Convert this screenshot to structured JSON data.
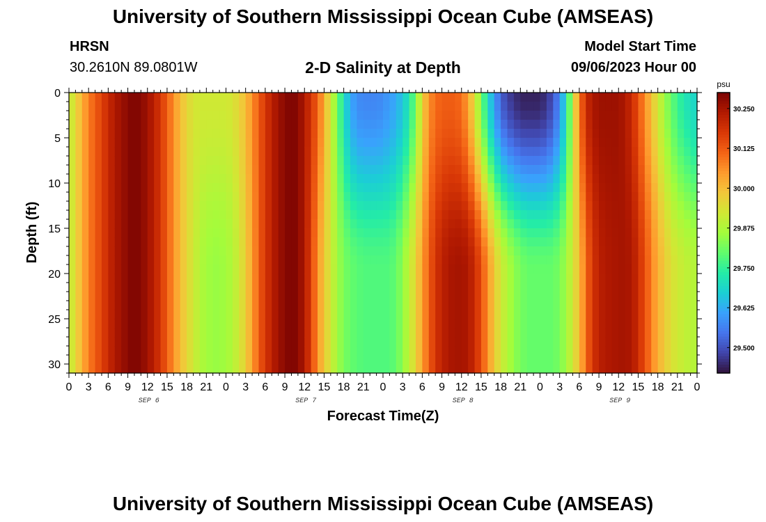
{
  "header": {
    "title": "University of Southern Mississippi Ocean Cube (AMSEAS)",
    "station": "HRSN",
    "coordinates": "30.2610N  89.0801W",
    "subtitle": "2-D Salinity at Depth",
    "start_label": "Model Start Time",
    "start_value": "09/06/2023 Hour 00"
  },
  "footer": {
    "title": "University of Southern Mississippi Ocean Cube (AMSEAS)"
  },
  "colors": {
    "colormap": [
      "#30123b",
      "#4145ab",
      "#4675ed",
      "#39a2fc",
      "#1bcfd4",
      "#24eca6",
      "#61fc6c",
      "#a4fc3b",
      "#d1e834",
      "#f3c63a",
      "#fe9b2d",
      "#f36315",
      "#d93806",
      "#b11901",
      "#7a0402"
    ]
  },
  "chart_data": {
    "type": "heatmap",
    "title": "2-D Salinity at Depth",
    "xlabel": "Forecast Time(Z)",
    "ylabel": "Depth (ft)",
    "xlim": [
      0,
      96
    ],
    "ylim": [
      0,
      31
    ],
    "x_ticks": [
      0,
      3,
      6,
      9,
      12,
      15,
      18,
      21,
      24,
      27,
      30,
      33,
      36,
      39,
      42,
      45,
      48,
      51,
      54,
      57,
      60,
      63,
      66,
      69,
      72,
      75,
      78,
      81,
      84,
      87,
      90,
      93,
      96
    ],
    "x_tick_labels": [
      "0",
      "3",
      "6",
      "9",
      "12",
      "15",
      "18",
      "21",
      "0",
      "3",
      "6",
      "9",
      "12",
      "15",
      "18",
      "21",
      "0",
      "3",
      "6",
      "9",
      "12",
      "15",
      "18",
      "21",
      "0",
      "3",
      "6",
      "9",
      "12",
      "15",
      "18",
      "21",
      "0"
    ],
    "y_ticks": [
      0,
      5,
      10,
      15,
      20,
      25,
      30
    ],
    "y_tick_labels": [
      "0",
      "5",
      "10",
      "15",
      "20",
      "25",
      "30"
    ],
    "date_labels": [
      {
        "x": 12,
        "label": "SEP 6"
      },
      {
        "x": 36,
        "label": "SEP 7"
      },
      {
        "x": 60,
        "label": "SEP 8"
      },
      {
        "x": 84,
        "label": "SEP 9"
      }
    ],
    "colorbar": {
      "units": "psu",
      "range": [
        29.42,
        30.3
      ],
      "ticks": [
        29.5,
        29.625,
        29.75,
        29.875,
        30.0,
        30.125,
        30.25
      ],
      "tick_labels": [
        "29.500",
        "29.625",
        "29.750",
        "29.875",
        "30.000",
        "30.125",
        "30.250"
      ]
    },
    "surface_profile": {
      "hours": [
        0,
        1,
        2,
        3,
        4,
        5,
        6,
        7,
        8,
        9,
        10,
        11,
        12,
        13,
        14,
        15,
        16,
        17,
        18,
        19,
        20,
        21,
        22,
        23,
        24,
        25,
        26,
        27,
        28,
        29,
        30,
        31,
        32,
        33,
        34,
        35,
        36,
        37,
        38,
        39,
        40,
        41,
        42,
        43,
        44,
        45,
        46,
        47,
        48,
        49,
        50,
        51,
        52,
        53,
        54,
        55,
        56,
        57,
        58,
        59,
        60,
        61,
        62,
        63,
        64,
        65,
        66,
        67,
        68,
        69,
        70,
        71,
        72,
        73,
        74,
        75,
        76,
        77,
        78,
        79,
        80,
        81,
        82,
        83,
        84,
        85,
        86,
        87,
        88,
        89,
        90,
        91,
        92,
        93,
        94,
        95,
        96
      ],
      "values": [
        29.9,
        29.95,
        30.02,
        30.08,
        30.12,
        30.16,
        30.2,
        30.24,
        30.26,
        30.28,
        30.3,
        30.28,
        30.26,
        30.22,
        30.18,
        30.12,
        30.06,
        30.0,
        29.96,
        29.93,
        29.92,
        29.92,
        29.92,
        29.92,
        29.92,
        29.93,
        29.96,
        30.0,
        30.06,
        30.12,
        30.18,
        30.22,
        30.26,
        30.28,
        30.3,
        30.28,
        30.24,
        30.18,
        30.12,
        30.02,
        29.92,
        29.82,
        29.7,
        29.62,
        29.58,
        29.57,
        29.57,
        29.57,
        29.58,
        29.6,
        29.62,
        29.66,
        29.72,
        29.82,
        29.96,
        30.06,
        30.1,
        30.12,
        30.12,
        30.12,
        30.1,
        30.04,
        29.94,
        29.82,
        29.7,
        29.6,
        29.52,
        29.48,
        29.46,
        29.44,
        29.44,
        29.44,
        29.44,
        29.46,
        29.5,
        29.58,
        29.7,
        29.9,
        30.08,
        30.2,
        30.24,
        30.26,
        30.26,
        30.26,
        30.26,
        30.24,
        30.2,
        30.14,
        30.06,
        30.0,
        29.92,
        29.86,
        29.8,
        29.76,
        29.72,
        29.7,
        29.68
      ]
    },
    "bottom_profile": {
      "hours": [
        0,
        1,
        2,
        3,
        4,
        5,
        6,
        7,
        8,
        9,
        10,
        11,
        12,
        13,
        14,
        15,
        16,
        17,
        18,
        19,
        20,
        21,
        22,
        23,
        24,
        25,
        26,
        27,
        28,
        29,
        30,
        31,
        32,
        33,
        34,
        35,
        36,
        37,
        38,
        39,
        40,
        41,
        42,
        43,
        44,
        45,
        46,
        47,
        48,
        49,
        50,
        51,
        52,
        53,
        54,
        55,
        56,
        57,
        58,
        59,
        60,
        61,
        62,
        63,
        64,
        65,
        66,
        67,
        68,
        69,
        70,
        71,
        72,
        73,
        74,
        75,
        76,
        77,
        78,
        79,
        80,
        81,
        82,
        83,
        84,
        85,
        86,
        87,
        88,
        89,
        90,
        91,
        92,
        93,
        94,
        95,
        96
      ],
      "values": [
        29.9,
        29.95,
        30.02,
        30.08,
        30.12,
        30.16,
        30.2,
        30.24,
        30.26,
        30.28,
        30.3,
        30.28,
        30.26,
        30.22,
        30.18,
        30.12,
        30.06,
        30.0,
        29.96,
        29.92,
        29.88,
        29.86,
        29.85,
        29.85,
        29.86,
        29.88,
        29.92,
        29.97,
        30.04,
        30.12,
        30.18,
        30.22,
        30.26,
        30.28,
        30.3,
        30.28,
        30.24,
        30.16,
        30.06,
        29.98,
        29.92,
        29.86,
        29.82,
        29.8,
        29.79,
        29.78,
        29.78,
        29.78,
        29.78,
        29.78,
        29.8,
        29.84,
        29.9,
        29.96,
        30.04,
        30.12,
        30.18,
        30.22,
        30.24,
        30.25,
        30.25,
        30.24,
        30.2,
        30.14,
        30.06,
        29.98,
        29.92,
        29.88,
        29.84,
        29.82,
        29.8,
        29.8,
        29.8,
        29.8,
        29.8,
        29.82,
        29.86,
        29.92,
        30.0,
        30.1,
        30.18,
        30.22,
        30.24,
        30.24,
        30.25,
        30.25,
        30.24,
        30.2,
        30.14,
        30.08,
        30.02,
        29.98,
        29.94,
        29.92,
        29.9,
        29.89,
        29.88
      ]
    }
  }
}
